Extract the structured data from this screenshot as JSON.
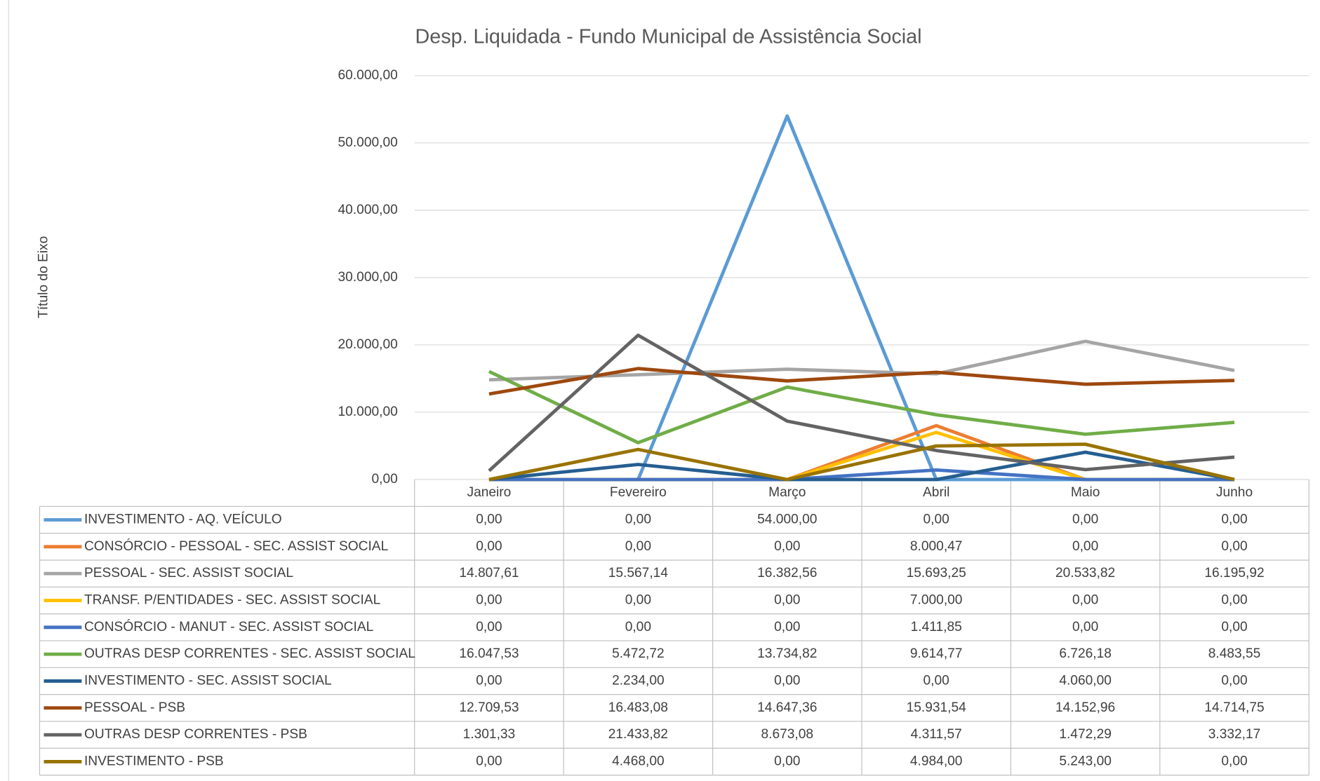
{
  "chart_data": {
    "type": "line",
    "title": "Desp. Liquidada - Fundo Municipal de Assistência Social",
    "y_label": "Título do Eixo",
    "categories": [
      "Janeiro",
      "Fevereiro",
      "Março",
      "Abril",
      "Maio",
      "Junho"
    ],
    "ylim": [
      0,
      60000
    ],
    "yticks": [
      {
        "value": 0,
        "label": "0,00"
      },
      {
        "value": 10000,
        "label": "10.000,00"
      },
      {
        "value": 20000,
        "label": "20.000,00"
      },
      {
        "value": 30000,
        "label": "30.000,00"
      },
      {
        "value": 40000,
        "label": "40.000,00"
      },
      {
        "value": 50000,
        "label": "50.000,00"
      },
      {
        "value": 60000,
        "label": "60.000,00"
      }
    ],
    "grid": true,
    "series": [
      {
        "name": "INVESTIMENTO - AQ. VEÍCULO",
        "color": "#5b9bd5",
        "values": [
          0,
          0,
          54000,
          0,
          0,
          0
        ],
        "value_labels": [
          "0,00",
          "0,00",
          "54.000,00",
          "0,00",
          "0,00",
          "0,00"
        ]
      },
      {
        "name": "CONSÓRCIO - PESSOAL - SEC. ASSIST SOCIAL",
        "color": "#ed7d31",
        "values": [
          0,
          0,
          0,
          8000.47,
          0,
          0
        ],
        "value_labels": [
          "0,00",
          "0,00",
          "0,00",
          "8.000,47",
          "0,00",
          "0,00"
        ]
      },
      {
        "name": "PESSOAL - SEC. ASSIST SOCIAL",
        "color": "#a5a5a5",
        "values": [
          14807.61,
          15567.14,
          16382.56,
          15693.25,
          20533.82,
          16195.92
        ],
        "value_labels": [
          "14.807,61",
          "15.567,14",
          "16.382,56",
          "15.693,25",
          "20.533,82",
          "16.195,92"
        ]
      },
      {
        "name": "TRANSF. P/ENTIDADES - SEC. ASSIST SOCIAL",
        "color": "#ffc000",
        "values": [
          0,
          0,
          0,
          7000,
          0,
          0
        ],
        "value_labels": [
          "0,00",
          "0,00",
          "0,00",
          "7.000,00",
          "0,00",
          "0,00"
        ]
      },
      {
        "name": "CONSÓRCIO - MANUT - SEC. ASSIST SOCIAL",
        "color": "#4472c4",
        "values": [
          0,
          0,
          0,
          1411.85,
          0,
          0
        ],
        "value_labels": [
          "0,00",
          "0,00",
          "0,00",
          "1.411,85",
          "0,00",
          "0,00"
        ]
      },
      {
        "name": "OUTRAS DESP CORRENTES - SEC. ASSIST SOCIAL",
        "color": "#70ad47",
        "values": [
          16047.53,
          5472.72,
          13734.82,
          9614.77,
          6726.18,
          8483.55
        ],
        "value_labels": [
          "16.047,53",
          "5.472,72",
          "13.734,82",
          "9.614,77",
          "6.726,18",
          "8.483,55"
        ]
      },
      {
        "name": "INVESTIMENTO - SEC. ASSIST SOCIAL",
        "color": "#255e91",
        "values": [
          0,
          2234,
          0,
          0,
          4060,
          0
        ],
        "value_labels": [
          "0,00",
          "2.234,00",
          "0,00",
          "0,00",
          "4.060,00",
          "0,00"
        ]
      },
      {
        "name": "PESSOAL - PSB",
        "color": "#9e480e",
        "values": [
          12709.53,
          16483.08,
          14647.36,
          15931.54,
          14152.96,
          14714.75
        ],
        "value_labels": [
          "12.709,53",
          "16.483,08",
          "14.647,36",
          "15.931,54",
          "14.152,96",
          "14.714,75"
        ]
      },
      {
        "name": "OUTRAS DESP CORRENTES - PSB",
        "color": "#636363",
        "values": [
          1301.33,
          21433.82,
          8673.08,
          4311.57,
          1472.29,
          3332.17
        ],
        "value_labels": [
          "1.301,33",
          "21.433,82",
          "8.673,08",
          "4.311,57",
          "1.472,29",
          "3.332,17"
        ]
      },
      {
        "name": "INVESTIMENTO - PSB",
        "color": "#997300",
        "values": [
          0,
          4468,
          0,
          4984,
          5243,
          0
        ],
        "value_labels": [
          "0,00",
          "4.468,00",
          "0,00",
          "4.984,00",
          "5.243,00",
          "0,00"
        ]
      }
    ]
  }
}
